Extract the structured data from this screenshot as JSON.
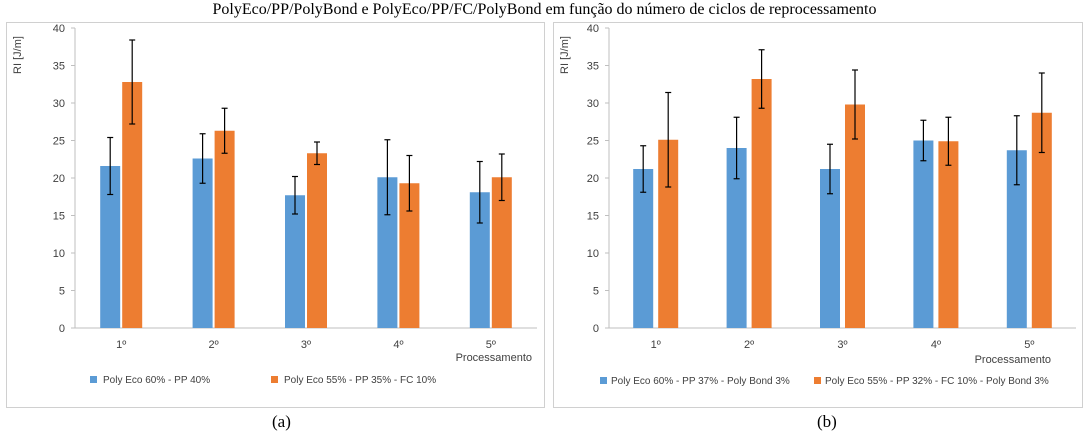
{
  "figure": {
    "caption": "PolyEco/PP/PolyBond e PolyEco/PP/FC/PolyBond em função do número de ciclos de reprocessamento",
    "sub_labels": [
      "(a)",
      "(b)"
    ]
  },
  "colors": {
    "series_1": "#5b9bd5",
    "series_2": "#ed7d31",
    "error": "#000000",
    "axis": "#bfbfbf"
  },
  "chart_data": [
    {
      "type": "bar",
      "ylabel": "RI [J/m]",
      "xlabel": "Processamento",
      "categories": [
        "1º",
        "2º",
        "3º",
        "4º",
        "5º"
      ],
      "ylim": [
        0,
        40
      ],
      "yticks": [
        0,
        5,
        10,
        15,
        20,
        25,
        30,
        35,
        40
      ],
      "grid": false,
      "legend_position": "bottom",
      "series": [
        {
          "name": "Poly Eco 60% - PP 40%",
          "values": [
            21.6,
            22.6,
            17.7,
            20.1,
            18.1
          ],
          "errors": [
            3.8,
            3.3,
            2.5,
            5.0,
            4.1
          ]
        },
        {
          "name": "Poly Eco 55% - PP 35% - FC 10%",
          "values": [
            32.8,
            26.3,
            23.3,
            19.3,
            20.1
          ],
          "errors": [
            5.6,
            3.0,
            1.5,
            3.7,
            3.1
          ]
        }
      ]
    },
    {
      "type": "bar",
      "ylabel": "RI [J/m]",
      "xlabel": "Processamento",
      "categories": [
        "1º",
        "2º",
        "3º",
        "4º",
        "5º"
      ],
      "ylim": [
        0,
        40
      ],
      "yticks": [
        0,
        5,
        10,
        15,
        20,
        25,
        30,
        35,
        40
      ],
      "grid": false,
      "legend_position": "bottom",
      "series": [
        {
          "name": "Poly Eco 60% - PP 37% - Poly Bond 3%",
          "values": [
            21.2,
            24.0,
            21.2,
            25.0,
            23.7
          ],
          "errors": [
            3.1,
            4.1,
            3.3,
            2.7,
            4.6
          ]
        },
        {
          "name": "Poly Eco 55% - PP 32% - FC 10% - Poly Bond 3%",
          "values": [
            25.1,
            33.2,
            29.8,
            24.9,
            28.7
          ],
          "errors": [
            6.3,
            3.9,
            4.6,
            3.2,
            5.3
          ]
        }
      ]
    }
  ]
}
